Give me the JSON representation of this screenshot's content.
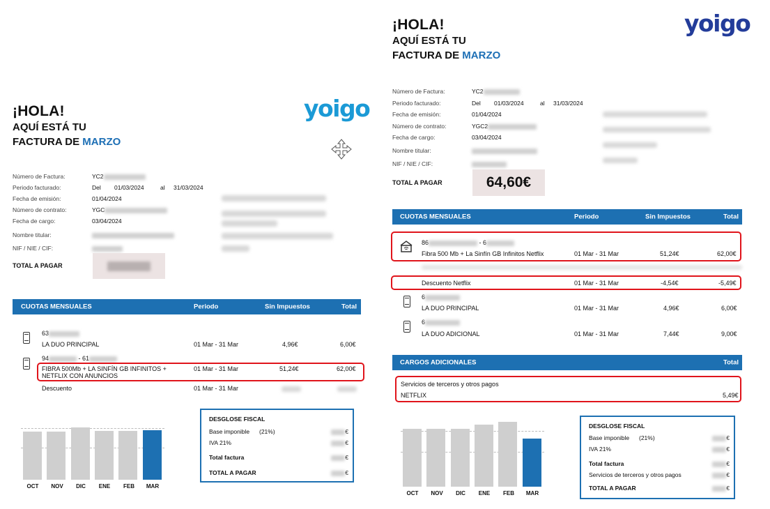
{
  "greeting": {
    "hola": "¡HOLA!",
    "line2": "AQUÍ ESTÁ TU",
    "line3_prefix": "FACTURA DE",
    "month": "MARZO"
  },
  "brand": {
    "logo": "yoigo",
    "accent": "#1d70b2",
    "highlight": "#e0141b"
  },
  "labels": {
    "invoice_number": "Número de Factura:",
    "period": "Periodo facturado:",
    "issue_date": "Fecha de emisión:",
    "contract_number": "Número de contrato:",
    "charge_date": "Fecha de cargo:",
    "holder": "Nombre titular:",
    "nif": "NIF / NIE / CIF:",
    "total_to_pay": "TOTAL A PAGAR"
  },
  "values": {
    "invoice_prefix": "YC2",
    "period_del": "Del",
    "period_from": "01/03/2024",
    "period_al": "al",
    "period_to": "31/03/2024",
    "issue_date": "01/04/2024",
    "contract_prefix": "YGC",
    "contract_prefix_right": "YGC2",
    "charge_date": "03/04/2024",
    "total_right": "64,60€"
  },
  "table": {
    "title": "CUOTAS MENSUALES",
    "col_period": "Periodo",
    "col_net": "Sin Impuestos",
    "col_total": "Total"
  },
  "left_lines": {
    "line1_prefix": "63",
    "line1_plan": "LA DUO PRINCIPAL",
    "line1_period": "01 Mar - 31 Mar",
    "line1_net": "4,96€",
    "line1_total": "6,00€",
    "line2_prefix": "94",
    "line2_mid": "- 61",
    "line2_plan_a": "FIBRA 500Mb + LA SINFÍN GB INFINITOS +",
    "line2_plan_b": "NETFLIX CON ANUNCIOS",
    "line2_period": "01 Mar - 31 Mar",
    "line2_net": "51,24€",
    "line2_total": "62,00€",
    "discount": "Descuento",
    "discount_period": "01 Mar - 31 Mar"
  },
  "right_lines": {
    "fiber_prefix": "86",
    "fiber_mid": "- 6",
    "fiber_plan": "Fibra 500 Mb + La Sinfín GB Infinitos Netflix",
    "fiber_period": "01 Mar - 31 Mar",
    "fiber_net": "51,24€",
    "fiber_total": "62,00€",
    "netflix_discount": "Descuento Netflix",
    "netflix_period": "01 Mar - 31 Mar",
    "netflix_net": "-4,54€",
    "netflix_total": "-5,49€",
    "duo1_prefix": "6",
    "duo1_plan": "LA DUO PRINCIPAL",
    "duo1_period": "01 Mar - 31 Mar",
    "duo1_net": "4,96€",
    "duo1_total": "6,00€",
    "duo2_prefix": "6",
    "duo2_plan": "LA DUO ADICIONAL",
    "duo2_period": "01 Mar - 31 Mar",
    "duo2_net": "7,44€",
    "duo2_total": "9,00€"
  },
  "extra": {
    "title": "CARGOS ADICIONALES",
    "col_total": "Total",
    "third_party": "Servicios de terceros y otros pagos",
    "netflix": "NETFLIX",
    "netflix_total": "5,49€"
  },
  "fiscal": {
    "title": "DESGLOSE FISCAL",
    "base": "Base imponible",
    "base_rate": "(21%)",
    "iva": "IVA 21%",
    "total_invoice": "Total factura",
    "third_party": "Servicios de terceros y otros pagos",
    "total_to_pay": "TOTAL A PAGAR",
    "euro": "€"
  },
  "chart_data": [
    {
      "type": "bar",
      "categories": [
        "OCT",
        "NOV",
        "DIC",
        "ENE",
        "FEB",
        "MAR"
      ],
      "values": [
        56,
        56,
        61,
        57,
        57,
        58
      ],
      "highlight_last": true
    },
    {
      "type": "bar",
      "categories": [
        "OCT",
        "NOV",
        "DIC",
        "ENE",
        "FEB",
        "MAR"
      ],
      "values": [
        62,
        62,
        62,
        67,
        70,
        52
      ],
      "highlight_last": true
    }
  ]
}
